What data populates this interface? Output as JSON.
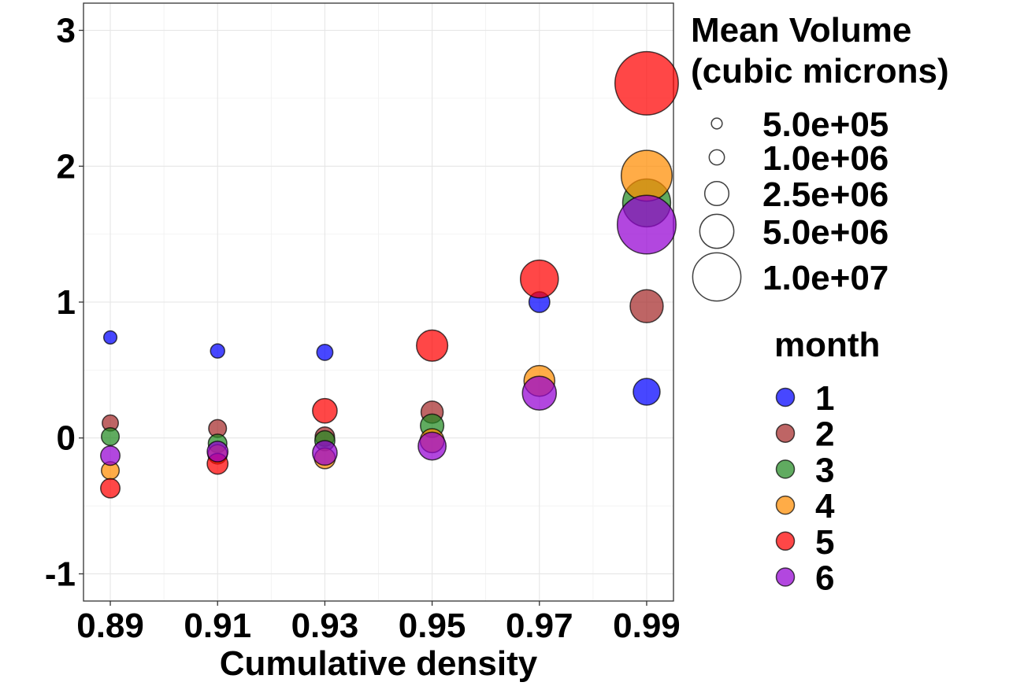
{
  "chart_data": {
    "type": "scatter",
    "title": "",
    "xlabel": "Cumulative density",
    "ylabel": "",
    "x_ticks": [
      "0.89",
      "0.91",
      "0.93",
      "0.95",
      "0.97",
      "0.99"
    ],
    "x_tick_values": [
      0.89,
      0.91,
      0.93,
      0.95,
      0.97,
      0.99
    ],
    "xlim": [
      0.885,
      0.995
    ],
    "y_ticks": [
      "-1",
      "0",
      "1",
      "2",
      "3"
    ],
    "y_tick_values": [
      -1,
      0,
      1,
      2,
      3
    ],
    "ylim": [
      -1.2,
      3.2
    ],
    "grid": true,
    "size_legend": {
      "title_lines": [
        "Mean Volume",
        "(cubic microns)"
      ],
      "entries": [
        {
          "label": "5.0e+05",
          "value": 500000
        },
        {
          "label": "1.0e+06",
          "value": 1000000
        },
        {
          "label": "2.5e+06",
          "value": 2500000
        },
        {
          "label": "5.0e+06",
          "value": 5000000
        },
        {
          "label": "1.0e+07",
          "value": 10000000
        }
      ]
    },
    "color_legend": {
      "title": "month",
      "placement": "right"
    },
    "series": [
      {
        "name": "1",
        "color": "#0000FF",
        "points": [
          {
            "x": 0.89,
            "y": 0.74,
            "volume": 600000
          },
          {
            "x": 0.91,
            "y": 0.64,
            "volume": 700000
          },
          {
            "x": 0.93,
            "y": 0.63,
            "volume": 900000
          },
          {
            "x": 0.97,
            "y": 1.0,
            "volume": 1500000
          },
          {
            "x": 0.99,
            "y": 0.34,
            "volume": 2500000
          }
        ]
      },
      {
        "name": "2",
        "color": "#A52A2A",
        "points": [
          {
            "x": 0.89,
            "y": 0.11,
            "volume": 900000
          },
          {
            "x": 0.91,
            "y": 0.07,
            "volume": 1100000
          },
          {
            "x": 0.93,
            "y": 0.01,
            "volume": 1300000
          },
          {
            "x": 0.95,
            "y": 0.19,
            "volume": 1700000
          },
          {
            "x": 0.99,
            "y": 0.97,
            "volume": 3800000
          }
        ]
      },
      {
        "name": "3",
        "color": "#228B22",
        "points": [
          {
            "x": 0.89,
            "y": 0.01,
            "volume": 1100000
          },
          {
            "x": 0.91,
            "y": -0.04,
            "volume": 1200000
          },
          {
            "x": 0.93,
            "y": -0.02,
            "volume": 1400000
          },
          {
            "x": 0.95,
            "y": 0.09,
            "volume": 1900000
          },
          {
            "x": 0.99,
            "y": 1.73,
            "volume": 8000000
          }
        ]
      },
      {
        "name": "4",
        "color": "#FF8C00",
        "points": [
          {
            "x": 0.89,
            "y": -0.24,
            "volume": 1100000
          },
          {
            "x": 0.91,
            "y": -0.12,
            "volume": 1300000
          },
          {
            "x": 0.93,
            "y": -0.15,
            "volume": 1500000
          },
          {
            "x": 0.95,
            "y": -0.02,
            "volume": 2000000
          },
          {
            "x": 0.97,
            "y": 0.42,
            "volume": 3300000
          },
          {
            "x": 0.99,
            "y": 1.93,
            "volume": 9000000
          }
        ]
      },
      {
        "name": "5",
        "color": "#FF0000",
        "points": [
          {
            "x": 0.89,
            "y": -0.37,
            "volume": 1300000
          },
          {
            "x": 0.91,
            "y": -0.19,
            "volume": 1500000
          },
          {
            "x": 0.93,
            "y": 0.2,
            "volume": 2100000
          },
          {
            "x": 0.95,
            "y": 0.68,
            "volume": 3400000
          },
          {
            "x": 0.97,
            "y": 1.17,
            "volume": 5000000
          },
          {
            "x": 0.99,
            "y": 2.61,
            "volume": 14000000
          }
        ]
      },
      {
        "name": "6",
        "color": "#9400D3",
        "points": [
          {
            "x": 0.89,
            "y": -0.13,
            "volume": 1300000
          },
          {
            "x": 0.91,
            "y": -0.1,
            "volume": 1500000
          },
          {
            "x": 0.93,
            "y": -0.11,
            "volume": 2100000
          },
          {
            "x": 0.95,
            "y": -0.06,
            "volume": 2700000
          },
          {
            "x": 0.97,
            "y": 0.33,
            "volume": 4000000
          },
          {
            "x": 0.99,
            "y": 1.57,
            "volume": 12000000
          }
        ]
      }
    ]
  }
}
